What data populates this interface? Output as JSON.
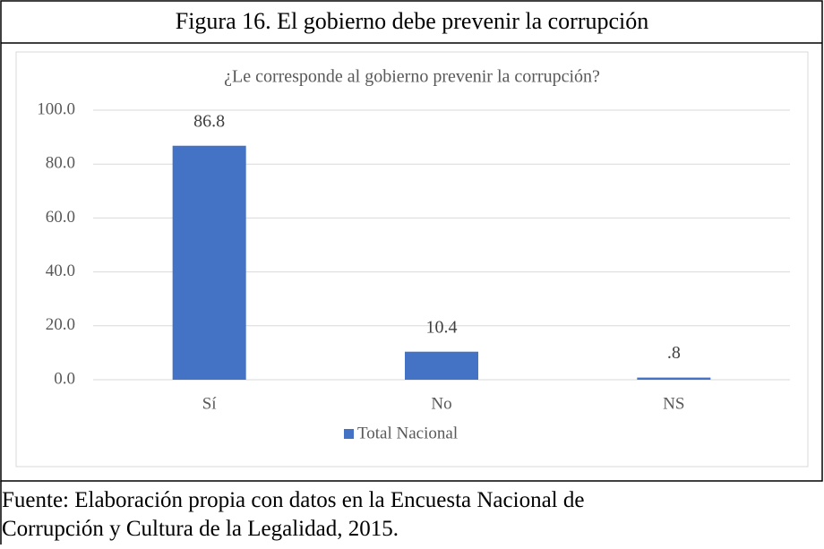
{
  "caption": "Figura 16. El gobierno debe prevenir la corrupción",
  "chart_data": {
    "type": "bar",
    "title": "¿Le corresponde al gobierno prevenir la corrupción?",
    "categories": [
      "Sí",
      "No",
      "NS"
    ],
    "series": [
      {
        "name": "Total Nacional",
        "color": "#4472c4",
        "values": [
          86.8,
          10.4,
          0.8
        ],
        "value_labels": [
          "86.8",
          "10.4",
          ".8"
        ]
      }
    ],
    "ylim": [
      0,
      100
    ],
    "yticks": [
      {
        "value": 0,
        "label": "0.0"
      },
      {
        "value": 20,
        "label": "20.0"
      },
      {
        "value": 40,
        "label": "40.0"
      },
      {
        "value": 60,
        "label": "60.0"
      },
      {
        "value": 80,
        "label": "80.0"
      },
      {
        "value": 100,
        "label": "100.0"
      }
    ],
    "grid": true,
    "legend": "bottom"
  },
  "source": "Fuente: Elaboración propia con datos en la Encuesta Nacional de Corrupción y Cultura de la Legalidad, 2015."
}
